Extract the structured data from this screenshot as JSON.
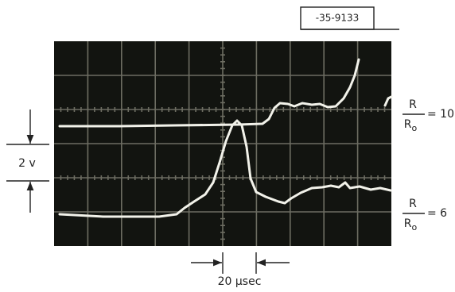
{
  "figure_id": "-35-9133",
  "vertical_scale": "2 v",
  "time_scale": "20 µsec",
  "traces": [
    {
      "numerator": "R",
      "denominator": "R",
      "subscript": "o",
      "ratio": "= 10"
    },
    {
      "numerator": "R",
      "denominator": "R",
      "subscript": "o",
      "ratio": "= 6"
    }
  ]
}
